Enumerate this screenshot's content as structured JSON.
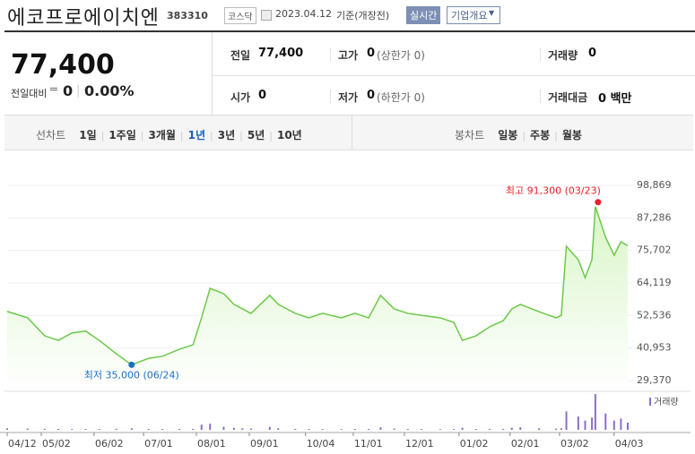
{
  "header": {
    "title": "에코프로에이치엔",
    "code": "383310",
    "market": "코스닥",
    "date": "2023.04.12",
    "basis": "기준(개장전)",
    "realtime_button": "실시간",
    "company_button": "기업개요"
  },
  "summary": {
    "price": "77,400",
    "change_label": "전일대비",
    "change": "0",
    "change_rate": "0.00%"
  },
  "quote_table": {
    "rows": [
      [
        {
          "label": "전일",
          "value": "77,400"
        },
        {
          "label": "고가",
          "value": "0",
          "note": "(상한가 0)"
        },
        {
          "label": "거래량",
          "value": "0"
        }
      ],
      [
        {
          "label": "시가",
          "value": "0"
        },
        {
          "label": "저가",
          "value": "0",
          "note": "(하한가 0)"
        },
        {
          "label": "거래대금",
          "value": "0 백만"
        }
      ]
    ]
  },
  "tabs": {
    "line_label": "선차트",
    "line_periods": [
      "1일",
      "1주일",
      "3개월",
      "1년",
      "3년",
      "5년",
      "10년"
    ],
    "selected": "1년",
    "candle_label": "봉차트",
    "candle_periods": [
      "일봉",
      "주봉",
      "월봉"
    ]
  },
  "chart_data": {
    "type": "area",
    "x": [
      "04/12",
      "04/24",
      "05/04",
      "05/12",
      "05/20",
      "05/28",
      "06/05",
      "06/15",
      "06/24",
      "07/04",
      "07/12",
      "07/22",
      "07/30",
      "08/04",
      "08/09",
      "08/17",
      "08/23",
      "08/28",
      "09/02",
      "09/13",
      "09/18",
      "09/28",
      "10/06",
      "10/14",
      "10/25",
      "11/02",
      "11/10",
      "11/17",
      "11/25",
      "12/03",
      "12/11",
      "12/22",
      "12/30",
      "01/04",
      "01/12",
      "01/20",
      "01/28",
      "02/02",
      "02/07",
      "02/18",
      "02/28",
      "03/03",
      "03/06",
      "03/13",
      "03/17",
      "03/21",
      "03/23",
      "03/29",
      "04/03",
      "04/07",
      "04/11"
    ],
    "series": [
      {
        "color": "#6cc94a",
        "fill": "#d9f5c8",
        "values": [
          54000,
          51700,
          45300,
          43700,
          46300,
          47000,
          43700,
          38900,
          35000,
          37300,
          38000,
          40500,
          42100,
          51700,
          62200,
          60300,
          56500,
          54900,
          53300,
          59700,
          56500,
          53300,
          51700,
          53300,
          51700,
          53300,
          51700,
          59700,
          54900,
          53300,
          52600,
          51700,
          50100,
          43700,
          45300,
          48500,
          50700,
          54900,
          56500,
          53900,
          51700,
          52600,
          77200,
          72400,
          66000,
          72400,
          91300,
          80400,
          74000,
          78800,
          77400
        ]
      }
    ],
    "volume": {
      "name": "거래량",
      "color": "#8b6fc8",
      "values": [
        150000,
        120000,
        100000,
        90000,
        80000,
        90000,
        80000,
        110000,
        150000,
        90000,
        80000,
        90000,
        100000,
        500000,
        600000,
        300000,
        200000,
        150000,
        120000,
        300000,
        150000,
        100000,
        90000,
        80000,
        70000,
        90000,
        80000,
        250000,
        120000,
        90000,
        80000,
        70000,
        80000,
        200000,
        90000,
        80000,
        100000,
        200000,
        250000,
        150000,
        120000,
        150000,
        1800000,
        1300000,
        900000,
        1200000,
        3500000,
        1600000,
        900000,
        1100000,
        700000
      ]
    },
    "ylim": [
      29370,
      98869
    ],
    "yticks": [
      {
        "value": 29370,
        "label": "29,370"
      },
      {
        "value": 40953,
        "label": "40,953"
      },
      {
        "value": 52536,
        "label": "52,536"
      },
      {
        "value": 64119,
        "label": "64,119"
      },
      {
        "value": 75702,
        "label": "75,702"
      },
      {
        "value": 87286,
        "label": "87,286"
      },
      {
        "value": 98869,
        "label": "98,869"
      }
    ],
    "xticks": [
      "04/12",
      "05/02",
      "06/02",
      "07/01",
      "08/01",
      "09/01",
      "10/04",
      "11/01",
      "12/01",
      "01/02",
      "02/01",
      "03/02",
      "04/03"
    ],
    "grid": true,
    "annotations": {
      "max": {
        "text": "최고 91,300 (03/23)",
        "color": "#e8202a"
      },
      "min": {
        "text": "최저 35,000 (06/24)",
        "color": "#1a6fc6"
      }
    }
  }
}
